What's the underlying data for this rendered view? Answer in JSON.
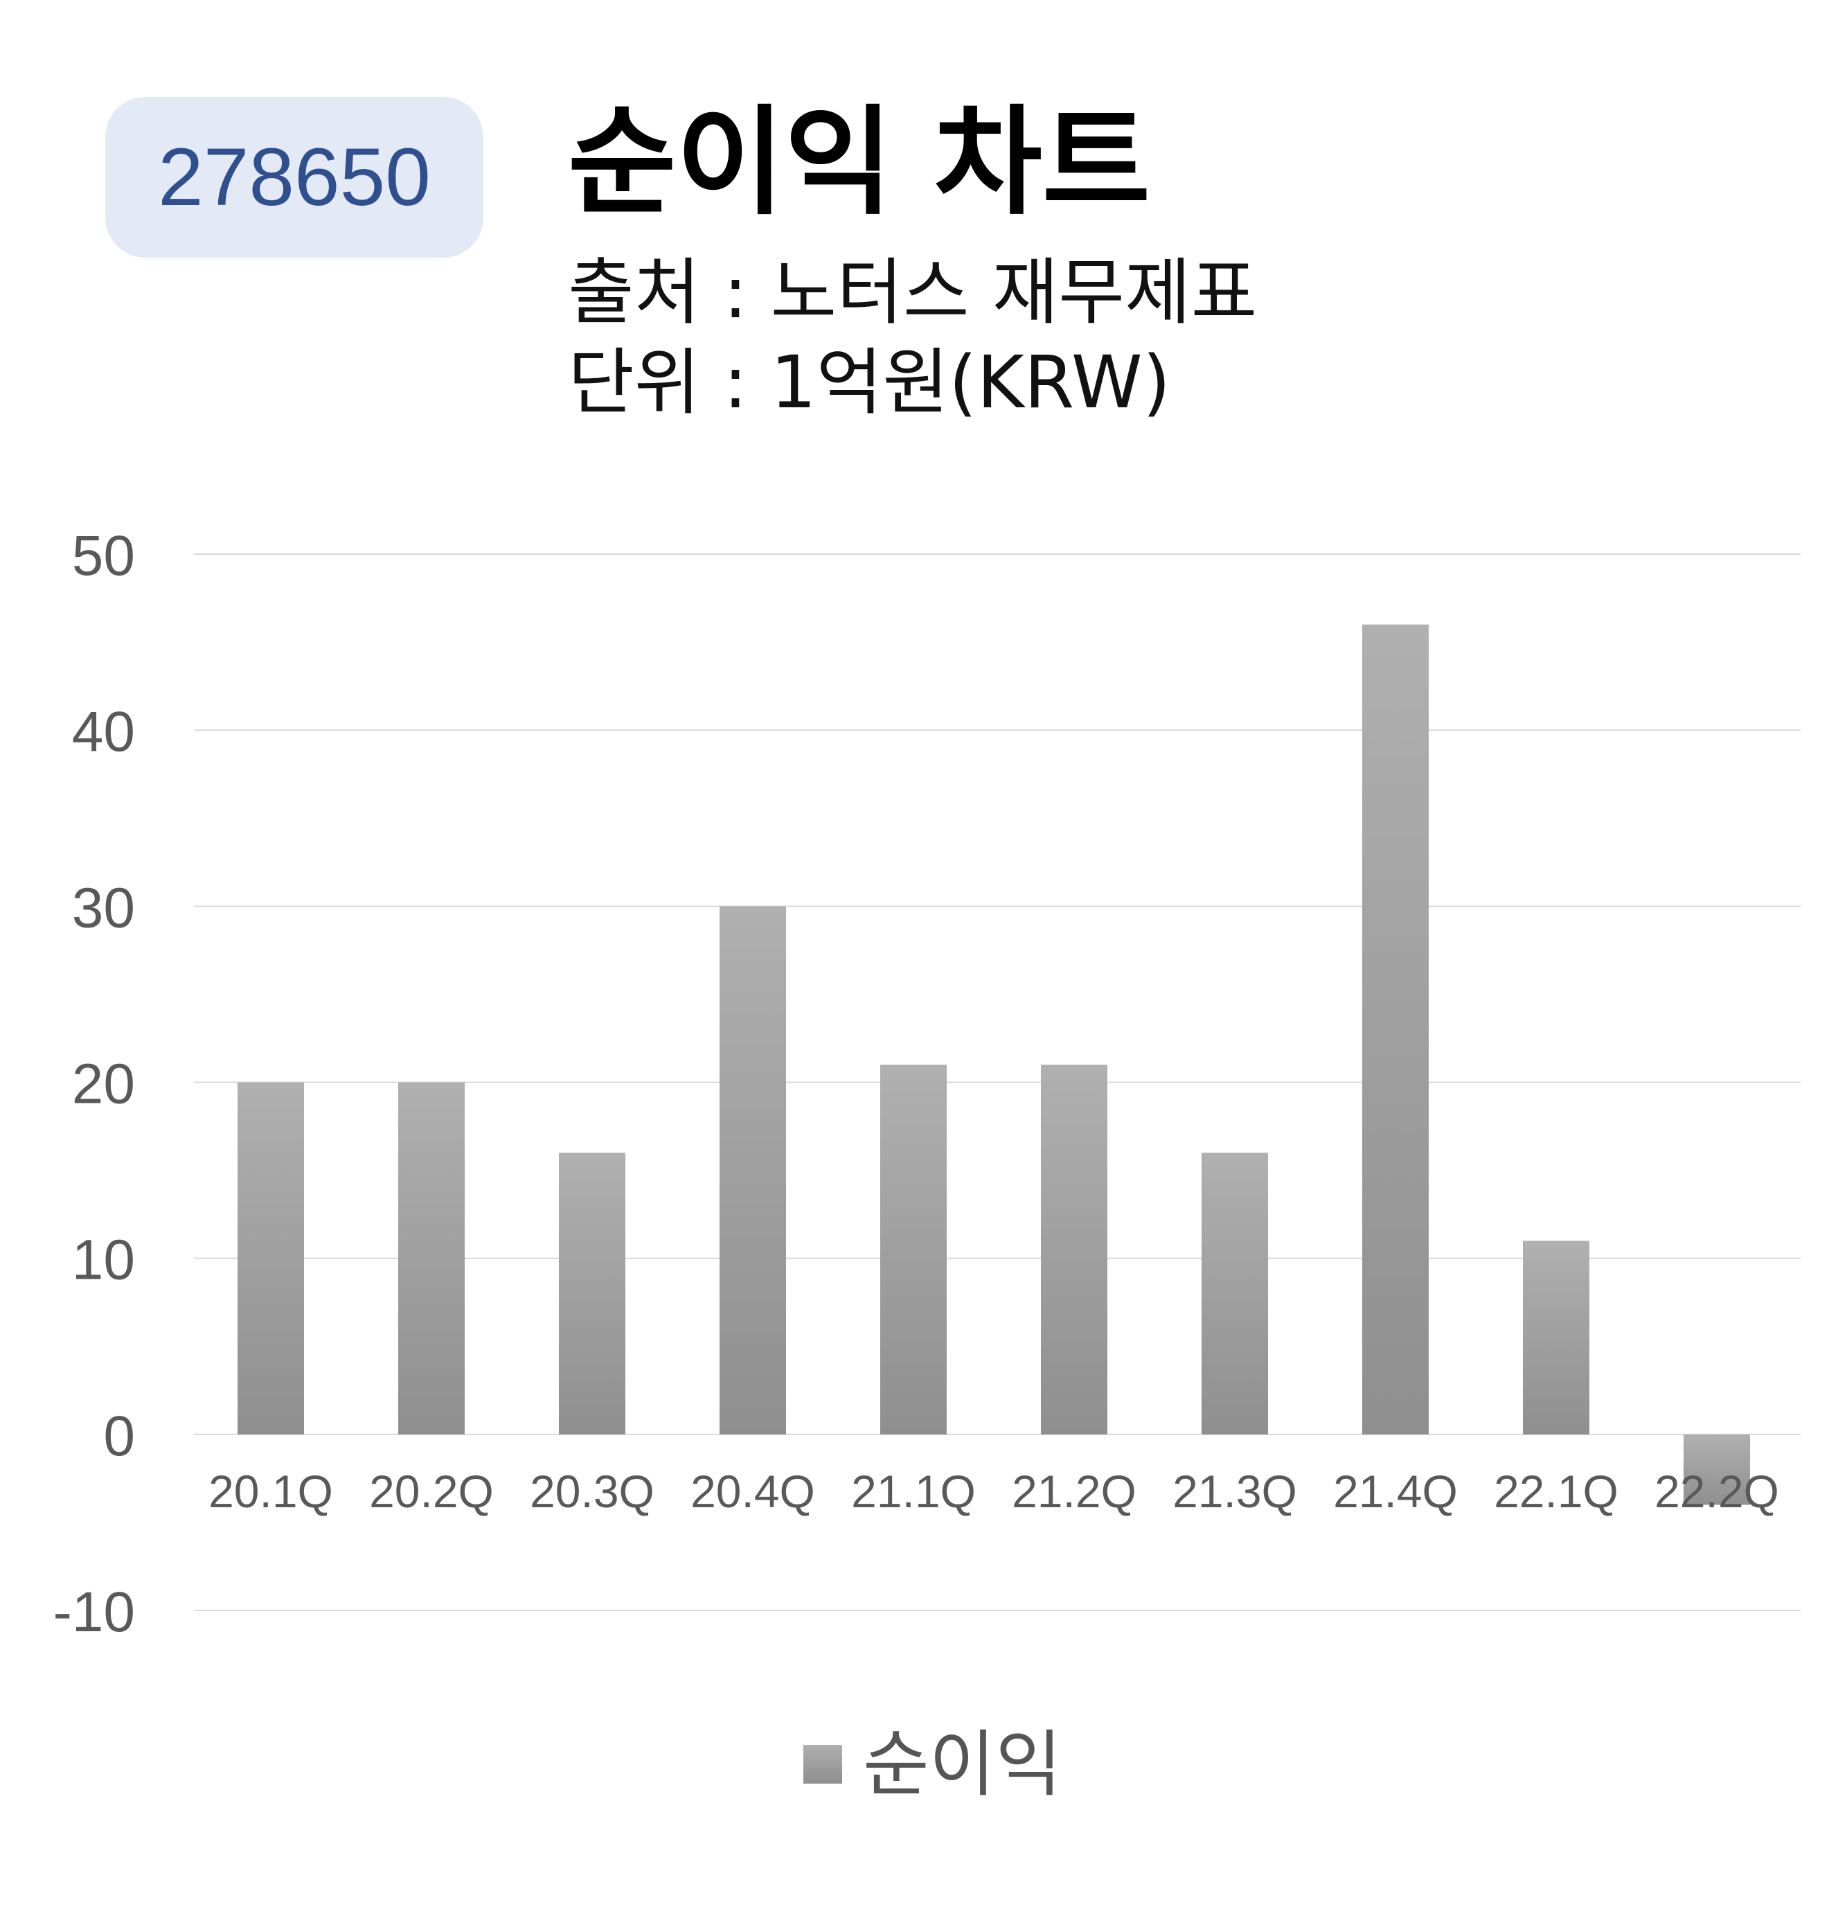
{
  "header": {
    "code": "278650",
    "title": "순이익 차트",
    "source": "출처 : 노터스 재무제표",
    "unit": "단위 : 1억원(KRW)"
  },
  "chart_data": {
    "type": "bar",
    "categories": [
      "20.1Q",
      "20.2Q",
      "20.3Q",
      "20.4Q",
      "21.1Q",
      "21.2Q",
      "21.3Q",
      "21.4Q",
      "22.1Q",
      "22.2Q"
    ],
    "series": [
      {
        "name": "순이익",
        "values": [
          20,
          20,
          16,
          30,
          21,
          21,
          16,
          46,
          11,
          -4
        ],
        "color": "#a0a0a0"
      }
    ],
    "ylim": [
      -10,
      50
    ],
    "yticks": [
      50,
      40,
      30,
      20,
      10,
      0,
      -10
    ],
    "grid": true,
    "legend_position": "bottom"
  }
}
